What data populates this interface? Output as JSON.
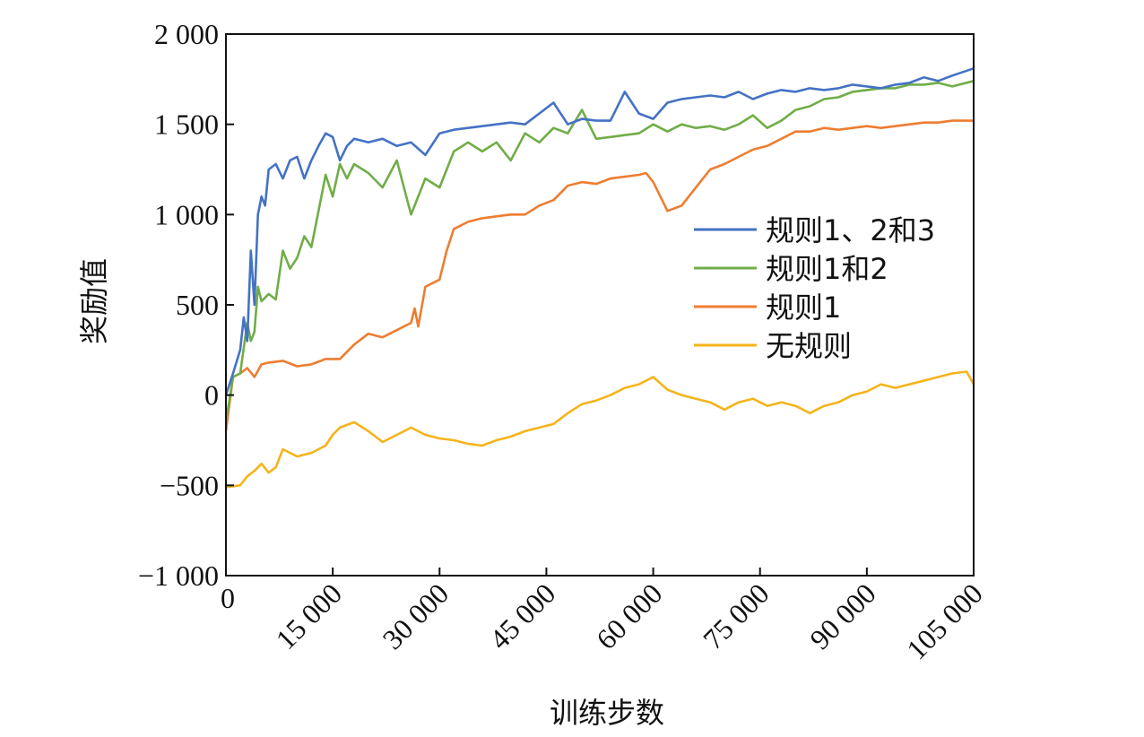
{
  "chart_data": {
    "type": "line",
    "xlabel": "训练步数",
    "ylabel": "奖励值",
    "xlim": [
      0,
      105000
    ],
    "ylim": [
      -1000,
      2000
    ],
    "x_ticks": [
      0,
      15000,
      30000,
      45000,
      60000,
      75000,
      90000,
      105000
    ],
    "x_tick_labels": [
      "0",
      "15 000",
      "30 000",
      "45 000",
      "60 000",
      "75 000",
      "90 000",
      "105 000"
    ],
    "y_ticks": [
      -1000,
      -500,
      0,
      500,
      1000,
      1500,
      2000
    ],
    "y_tick_labels": [
      "−1 000",
      "−500",
      "0",
      "500",
      "1 000",
      "1 500",
      "2 000"
    ],
    "grid": false,
    "legend_position": "right-center",
    "series": [
      {
        "name": "规则1、2和3",
        "color": "#4472c4",
        "x": [
          0,
          1000,
          2000,
          2500,
          3000,
          3500,
          4000,
          4500,
          5000,
          5500,
          6000,
          7000,
          8000,
          9000,
          10000,
          11000,
          12000,
          13000,
          14000,
          15000,
          16000,
          17000,
          18000,
          20000,
          22000,
          24000,
          26000,
          28000,
          30000,
          32000,
          34000,
          36000,
          38000,
          40000,
          42000,
          44000,
          46000,
          48000,
          50000,
          52000,
          54000,
          56000,
          58000,
          60000,
          62000,
          64000,
          66000,
          68000,
          70000,
          72000,
          74000,
          76000,
          78000,
          80000,
          82000,
          84000,
          86000,
          88000,
          90000,
          92000,
          94000,
          96000,
          98000,
          100000,
          102000,
          105000
        ],
        "y": [
          0,
          120,
          250,
          430,
          300,
          800,
          500,
          1000,
          1100,
          1050,
          1250,
          1280,
          1200,
          1300,
          1320,
          1200,
          1300,
          1380,
          1450,
          1430,
          1300,
          1380,
          1420,
          1400,
          1420,
          1380,
          1400,
          1330,
          1450,
          1470,
          1480,
          1490,
          1500,
          1510,
          1500,
          1560,
          1620,
          1500,
          1530,
          1520,
          1520,
          1680,
          1560,
          1530,
          1620,
          1640,
          1650,
          1660,
          1650,
          1680,
          1640,
          1670,
          1690,
          1680,
          1700,
          1690,
          1700,
          1720,
          1710,
          1700,
          1720,
          1730,
          1760,
          1740,
          1770,
          1810
        ]
      },
      {
        "name": "规则1和2",
        "color": "#70ad47",
        "x": [
          0,
          1000,
          2000,
          3000,
          3500,
          4000,
          4500,
          5000,
          6000,
          7000,
          8000,
          9000,
          10000,
          11000,
          12000,
          13000,
          14000,
          15000,
          16000,
          17000,
          18000,
          20000,
          22000,
          24000,
          26000,
          28000,
          30000,
          32000,
          34000,
          36000,
          38000,
          40000,
          42000,
          44000,
          46000,
          48000,
          50000,
          52000,
          54000,
          56000,
          58000,
          60000,
          62000,
          64000,
          66000,
          68000,
          70000,
          72000,
          74000,
          76000,
          78000,
          80000,
          82000,
          84000,
          86000,
          88000,
          90000,
          92000,
          94000,
          96000,
          98000,
          100000,
          102000,
          105000
        ],
        "y": [
          -150,
          100,
          120,
          400,
          300,
          350,
          600,
          520,
          560,
          530,
          800,
          700,
          760,
          880,
          820,
          1020,
          1220,
          1100,
          1280,
          1200,
          1280,
          1230,
          1150,
          1300,
          1000,
          1200,
          1150,
          1350,
          1400,
          1350,
          1400,
          1300,
          1450,
          1400,
          1480,
          1450,
          1580,
          1420,
          1430,
          1440,
          1450,
          1500,
          1460,
          1500,
          1480,
          1490,
          1470,
          1500,
          1550,
          1480,
          1520,
          1580,
          1600,
          1640,
          1650,
          1680,
          1690,
          1700,
          1700,
          1720,
          1720,
          1730,
          1710,
          1740
        ]
      },
      {
        "name": "规则1",
        "color": "#ed7d31",
        "x": [
          0,
          1000,
          2000,
          3000,
          4000,
          5000,
          6000,
          8000,
          10000,
          12000,
          14000,
          16000,
          18000,
          20000,
          22000,
          24000,
          26000,
          26500,
          27000,
          28000,
          30000,
          31000,
          32000,
          34000,
          36000,
          38000,
          40000,
          42000,
          44000,
          46000,
          48000,
          50000,
          52000,
          54000,
          56000,
          58000,
          59000,
          60000,
          62000,
          64000,
          66000,
          68000,
          70000,
          72000,
          74000,
          76000,
          78000,
          80000,
          82000,
          84000,
          86000,
          88000,
          90000,
          92000,
          94000,
          96000,
          98000,
          100000,
          102000,
          105000
        ],
        "y": [
          -200,
          100,
          120,
          150,
          100,
          170,
          180,
          190,
          160,
          170,
          200,
          200,
          280,
          340,
          320,
          360,
          400,
          480,
          380,
          600,
          640,
          800,
          920,
          960,
          980,
          990,
          1000,
          1000,
          1050,
          1080,
          1160,
          1180,
          1170,
          1200,
          1210,
          1220,
          1230,
          1180,
          1020,
          1050,
          1150,
          1250,
          1280,
          1320,
          1360,
          1380,
          1420,
          1460,
          1460,
          1480,
          1470,
          1480,
          1490,
          1480,
          1490,
          1500,
          1510,
          1510,
          1520,
          1520
        ]
      },
      {
        "name": "无规则",
        "color": "#f4b41a",
        "x": [
          0,
          2000,
          3000,
          4000,
          5000,
          6000,
          7000,
          8000,
          10000,
          12000,
          14000,
          15000,
          16000,
          18000,
          20000,
          22000,
          24000,
          26000,
          28000,
          30000,
          32000,
          34000,
          36000,
          38000,
          40000,
          42000,
          44000,
          46000,
          48000,
          50000,
          52000,
          54000,
          56000,
          58000,
          60000,
          62000,
          64000,
          66000,
          68000,
          70000,
          72000,
          74000,
          76000,
          78000,
          80000,
          82000,
          84000,
          86000,
          88000,
          90000,
          92000,
          94000,
          96000,
          98000,
          100000,
          102000,
          104000,
          105000
        ],
        "y": [
          -510,
          -500,
          -450,
          -420,
          -380,
          -430,
          -400,
          -300,
          -340,
          -320,
          -280,
          -220,
          -180,
          -150,
          -200,
          -260,
          -220,
          -180,
          -220,
          -240,
          -250,
          -270,
          -280,
          -250,
          -230,
          -200,
          -180,
          -160,
          -100,
          -50,
          -30,
          0,
          40,
          60,
          100,
          30,
          0,
          -20,
          -40,
          -80,
          -40,
          -20,
          -60,
          -40,
          -60,
          -100,
          -60,
          -40,
          0,
          20,
          60,
          40,
          60,
          80,
          100,
          120,
          130,
          60
        ]
      }
    ]
  }
}
